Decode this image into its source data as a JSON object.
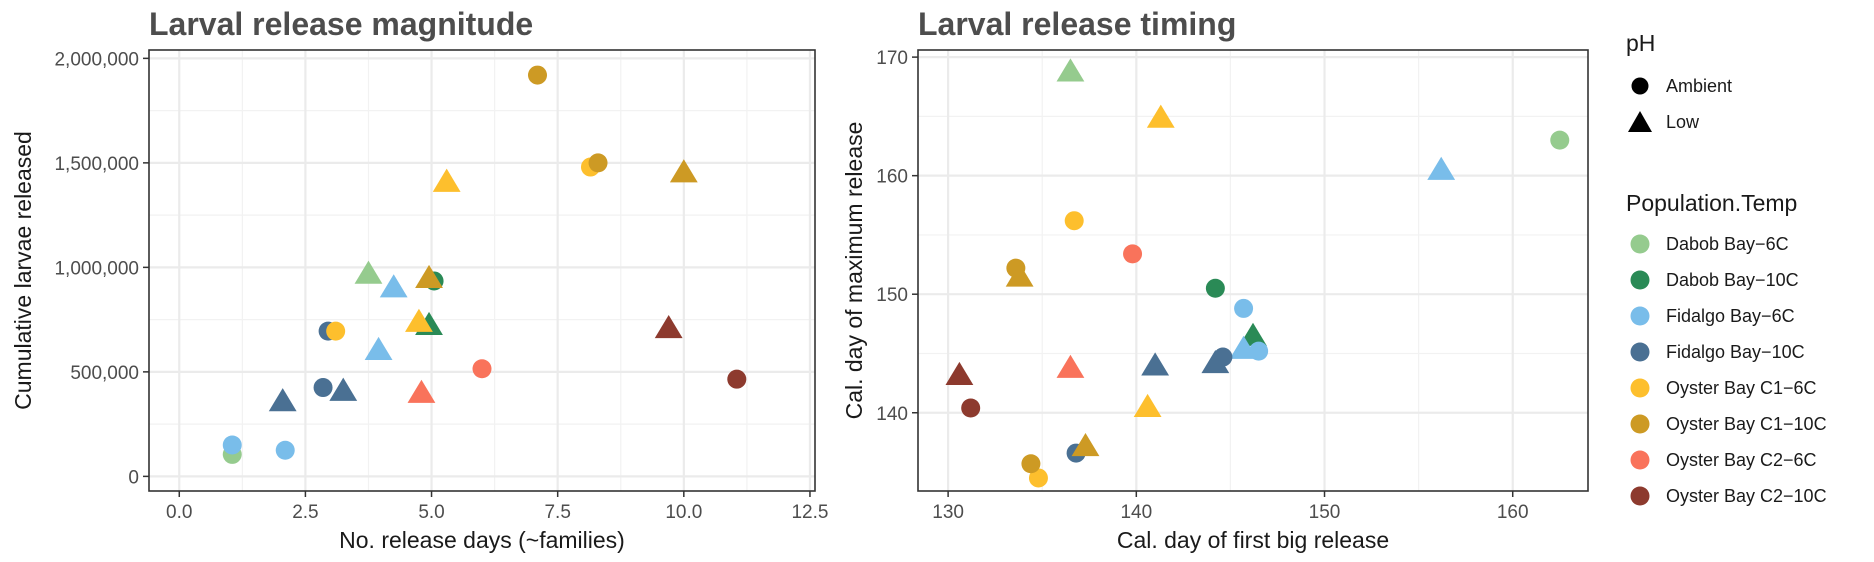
{
  "legend": {
    "shape_title": "pH",
    "shapes": [
      {
        "label": "Ambient",
        "icon": "circle-icon"
      },
      {
        "label": "Low",
        "icon": "triangle-icon"
      }
    ],
    "color_title": "Population.Temp",
    "colors": [
      {
        "label": "Dabob Bay−6C",
        "color": "#95CB8E"
      },
      {
        "label": "Dabob Bay−10C",
        "color": "#2A8A56"
      },
      {
        "label": "Fidalgo Bay−6C",
        "color": "#79BDEA"
      },
      {
        "label": "Fidalgo Bay−10C",
        "color": "#4A7093"
      },
      {
        "label": "Oyster Bay C1−6C",
        "color": "#FDBF2D"
      },
      {
        "label": "Oyster Bay C1−10C",
        "color": "#CD9A24"
      },
      {
        "label": "Oyster Bay C2−6C",
        "color": "#F9735B"
      },
      {
        "label": "Oyster Bay C2−10C",
        "color": "#8D3A2E"
      }
    ]
  },
  "chart_data": [
    {
      "type": "scatter",
      "title": "Larval release magnitude",
      "xlabel": "No. release days (~families)",
      "ylabel": "Cumulative larvae released",
      "xlim": [
        -0.6,
        12.6
      ],
      "ylim": [
        -70000,
        2040000
      ],
      "xticks": [
        0,
        2.5,
        5,
        7.5,
        10,
        12.5
      ],
      "xtick_labels": [
        "0.0",
        "2.5",
        "5.0",
        "7.5",
        "10.0",
        "12.5"
      ],
      "yticks": [
        0,
        500000,
        1000000,
        1500000,
        2000000
      ],
      "ytick_labels": [
        "0",
        "500,000",
        "1,000,000",
        "1,500,000",
        "2,000,000"
      ],
      "grid": true,
      "points": [
        {
          "group": "Dabob Bay−6C",
          "pH": "Ambient",
          "x": 1.05,
          "y": 105000
        },
        {
          "group": "Dabob Bay−6C",
          "pH": "Low",
          "x": 3.75,
          "y": 970000
        },
        {
          "group": "Dabob Bay−10C",
          "pH": "Ambient",
          "x": 5.05,
          "y": 935000
        },
        {
          "group": "Dabob Bay−10C",
          "pH": "Low",
          "x": 4.95,
          "y": 725000
        },
        {
          "group": "Fidalgo Bay−6C",
          "pH": "Ambient",
          "x": 1.05,
          "y": 150000
        },
        {
          "group": "Fidalgo Bay−6C",
          "pH": "Ambient",
          "x": 2.1,
          "y": 125000
        },
        {
          "group": "Fidalgo Bay−6C",
          "pH": "Low",
          "x": 4.25,
          "y": 905000
        },
        {
          "group": "Fidalgo Bay−6C",
          "pH": "Low",
          "x": 3.95,
          "y": 605000
        },
        {
          "group": "Fidalgo Bay−10C",
          "pH": "Ambient",
          "x": 2.95,
          "y": 695000
        },
        {
          "group": "Fidalgo Bay−10C",
          "pH": "Ambient",
          "x": 2.85,
          "y": 425000
        },
        {
          "group": "Fidalgo Bay−10C",
          "pH": "Low",
          "x": 2.05,
          "y": 360000
        },
        {
          "group": "Fidalgo Bay−10C",
          "pH": "Low",
          "x": 3.25,
          "y": 410000
        },
        {
          "group": "Oyster Bay C1−6C",
          "pH": "Ambient",
          "x": 3.1,
          "y": 695000
        },
        {
          "group": "Oyster Bay C1−6C",
          "pH": "Ambient",
          "x": 8.15,
          "y": 1480000
        },
        {
          "group": "Oyster Bay C1−6C",
          "pH": "Low",
          "x": 5.3,
          "y": 1410000
        },
        {
          "group": "Oyster Bay C1−6C",
          "pH": "Low",
          "x": 4.75,
          "y": 740000
        },
        {
          "group": "Oyster Bay C1−10C",
          "pH": "Ambient",
          "x": 7.1,
          "y": 1920000
        },
        {
          "group": "Oyster Bay C1−10C",
          "pH": "Ambient",
          "x": 8.3,
          "y": 1500000
        },
        {
          "group": "Oyster Bay C1−10C",
          "pH": "Low",
          "x": 10.0,
          "y": 1455000
        },
        {
          "group": "Oyster Bay C1−10C",
          "pH": "Low",
          "x": 4.95,
          "y": 950000
        },
        {
          "group": "Oyster Bay C2−6C",
          "pH": "Ambient",
          "x": 6.0,
          "y": 515000
        },
        {
          "group": "Oyster Bay C2−6C",
          "pH": "Low",
          "x": 4.8,
          "y": 400000
        },
        {
          "group": "Oyster Bay C2−10C",
          "pH": "Ambient",
          "x": 11.05,
          "y": 465000
        },
        {
          "group": "Oyster Bay C2−10C",
          "pH": "Low",
          "x": 9.7,
          "y": 710000
        }
      ]
    },
    {
      "type": "scatter",
      "title": "Larval release timing",
      "xlabel": "Cal. day of first big release",
      "ylabel": "Cal. day of maximum release",
      "xlim": [
        128.4,
        164.0
      ],
      "ylim": [
        133.4,
        170.6
      ],
      "xticks": [
        130,
        140,
        150,
        160
      ],
      "xtick_labels": [
        "130",
        "140",
        "150",
        "160"
      ],
      "yticks": [
        140,
        150,
        160,
        170
      ],
      "ytick_labels": [
        "140",
        "150",
        "160",
        "170"
      ],
      "grid": true,
      "points": [
        {
          "group": "Dabob Bay−6C",
          "pH": "Ambient",
          "x": 162.5,
          "y": 163.0
        },
        {
          "group": "Dabob Bay−6C",
          "pH": "Low",
          "x": 136.5,
          "y": 168.8
        },
        {
          "group": "Dabob Bay−10C",
          "pH": "Ambient",
          "x": 144.2,
          "y": 150.5
        },
        {
          "group": "Dabob Bay−10C",
          "pH": "Low",
          "x": 146.2,
          "y": 146.5
        },
        {
          "group": "Fidalgo Bay−6C",
          "pH": "Ambient",
          "x": 145.7,
          "y": 148.8
        },
        {
          "group": "Fidalgo Bay−6C",
          "pH": "Ambient",
          "x": 146.5,
          "y": 145.2
        },
        {
          "group": "Fidalgo Bay−6C",
          "pH": "Low",
          "x": 156.2,
          "y": 160.5
        },
        {
          "group": "Fidalgo Bay−6C",
          "pH": "Low",
          "x": 145.7,
          "y": 145.4
        },
        {
          "group": "Fidalgo Bay−10C",
          "pH": "Ambient",
          "x": 144.6,
          "y": 144.7
        },
        {
          "group": "Fidalgo Bay−10C",
          "pH": "Ambient",
          "x": 136.8,
          "y": 136.6
        },
        {
          "group": "Fidalgo Bay−10C",
          "pH": "Low",
          "x": 141.0,
          "y": 144.0
        },
        {
          "group": "Fidalgo Bay−10C",
          "pH": "Low",
          "x": 144.2,
          "y": 144.2
        },
        {
          "group": "Oyster Bay C1−6C",
          "pH": "Ambient",
          "x": 136.7,
          "y": 156.2
        },
        {
          "group": "Oyster Bay C1−6C",
          "pH": "Ambient",
          "x": 134.8,
          "y": 134.5
        },
        {
          "group": "Oyster Bay C1−6C",
          "pH": "Low",
          "x": 141.3,
          "y": 164.9
        },
        {
          "group": "Oyster Bay C1−6C",
          "pH": "Low",
          "x": 140.6,
          "y": 140.5
        },
        {
          "group": "Oyster Bay C1−10C",
          "pH": "Ambient",
          "x": 133.6,
          "y": 152.2
        },
        {
          "group": "Oyster Bay C1−10C",
          "pH": "Ambient",
          "x": 134.4,
          "y": 135.7
        },
        {
          "group": "Oyster Bay C1−10C",
          "pH": "Low",
          "x": 133.8,
          "y": 151.5
        },
        {
          "group": "Oyster Bay C1−10C",
          "pH": "Low",
          "x": 137.3,
          "y": 137.2
        },
        {
          "group": "Oyster Bay C2−6C",
          "pH": "Ambient",
          "x": 139.8,
          "y": 153.4
        },
        {
          "group": "Oyster Bay C2−6C",
          "pH": "Low",
          "x": 136.5,
          "y": 143.8
        },
        {
          "group": "Oyster Bay C2−10C",
          "pH": "Ambient",
          "x": 131.2,
          "y": 140.4
        },
        {
          "group": "Oyster Bay C2−10C",
          "pH": "Low",
          "x": 130.6,
          "y": 143.2
        }
      ]
    }
  ]
}
